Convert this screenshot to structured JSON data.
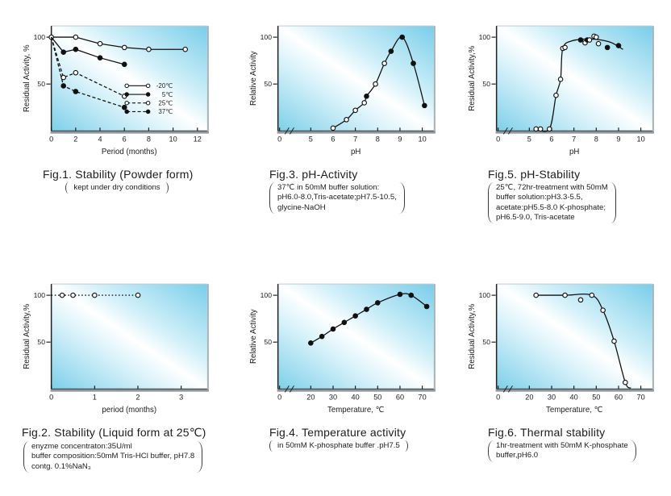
{
  "colors": {
    "panel_gradient": [
      "#7ecfe9",
      "#d8f2fa",
      "#ffffff",
      "#d2f0f9",
      "#79cde9"
    ],
    "line": "#111111",
    "text": "#1c1c1c",
    "axis": "#333333"
  },
  "chart_data": [
    {
      "id": "fig1",
      "type": "line",
      "title": "Fig.1. Stability (Powder form)",
      "caption": [
        "kept under dry conditions"
      ],
      "xlabel": "Period (months)",
      "ylabel": "Residual Activity, %",
      "x": {
        "min": 0,
        "max": 12.8,
        "ticks": [
          0,
          2,
          4,
          6,
          8,
          10,
          12
        ],
        "break": false
      },
      "y": {
        "max": 112,
        "ticks": [
          50,
          100
        ]
      },
      "legend": true,
      "series": [
        {
          "name": "-20℃",
          "marker": "open",
          "line": "solid",
          "smooth": false,
          "points": [
            [
              0,
              100
            ],
            [
              2,
              100
            ],
            [
              4,
              93
            ],
            [
              6,
              89
            ],
            [
              8,
              87
            ],
            [
              11,
              87
            ]
          ]
        },
        {
          "name": "5℃",
          "marker": "filled",
          "line": "solid",
          "smooth": false,
          "points": [
            [
              0,
              100,
              "n"
            ],
            [
              1,
              84
            ],
            [
              2,
              87
            ],
            [
              4,
              78
            ],
            [
              6,
              71
            ]
          ]
        },
        {
          "name": "25℃",
          "marker": "open",
          "line": "dashed",
          "smooth": false,
          "points": [
            [
              0,
              100,
              "n"
            ],
            [
              1,
              57
            ],
            [
              2,
              62
            ],
            [
              6,
              37
            ]
          ]
        },
        {
          "name": "37℃",
          "marker": "filled",
          "line": "dashed",
          "smooth": false,
          "points": [
            [
              0,
              100,
              "n"
            ],
            [
              1,
              48
            ],
            [
              2,
              42
            ],
            [
              6,
              25
            ]
          ]
        }
      ]
    },
    {
      "id": "fig3",
      "type": "line",
      "title": "Fig.3. pH-Activity",
      "caption": [
        "37℃ in 50mM buffer solution:",
        "pH6.0-8.0,Tris-acetate;pH7.5-10.5,",
        "glycine-NaOH"
      ],
      "xlabel": "pH",
      "ylabel": "Relative Activity",
      "x": {
        "min": 5,
        "max": 10,
        "ticks": [
          0,
          5,
          6,
          7,
          8,
          9,
          10
        ],
        "break": true
      },
      "y": {
        "max": 112,
        "ticks": [
          50,
          100
        ]
      },
      "legend": false,
      "series": [
        {
          "name": "",
          "marker": "mixed",
          "line": "solid",
          "smooth": true,
          "points": [
            [
              6.0,
              3,
              "o"
            ],
            [
              6.6,
              12,
              "o"
            ],
            [
              7.0,
              22,
              "o"
            ],
            [
              7.4,
              30,
              "o"
            ],
            [
              7.5,
              37,
              "f"
            ],
            [
              7.9,
              50,
              "o"
            ],
            [
              8.3,
              72,
              "o"
            ],
            [
              8.6,
              85,
              "f"
            ],
            [
              9.1,
              100,
              "f"
            ],
            [
              9.6,
              72,
              "f"
            ],
            [
              10.1,
              27,
              "f"
            ]
          ]
        }
      ]
    },
    {
      "id": "fig5",
      "type": "line",
      "title": "Fig.5. pH-Stability",
      "caption": [
        "25℃, 72hr-treatment with 50mM",
        "buffer solution:pH3.3-5.5,",
        "acetate:pH5.5-8.0 K-phosphate;",
        "pH6.5-9.0, Tris-acetate"
      ],
      "xlabel": "pH",
      "ylabel": "Residual Activity,%",
      "x": {
        "min": 5,
        "max": 10,
        "ticks": [
          0,
          5,
          6,
          7,
          8,
          9,
          10
        ],
        "break": true
      },
      "y": {
        "max": 112,
        "ticks": [
          50,
          100
        ]
      },
      "legend": false,
      "series": [
        {
          "name": "",
          "marker": "none",
          "line": "solid",
          "smooth": true,
          "points": [
            [
              5.3,
              2
            ],
            [
              5.9,
              2
            ],
            [
              6.2,
              38
            ],
            [
              6.4,
              55
            ],
            [
              6.5,
              88
            ],
            [
              6.9,
              96
            ],
            [
              7.6,
              98
            ],
            [
              8.2,
              97
            ],
            [
              8.7,
              94
            ],
            [
              9.2,
              87
            ]
          ]
        },
        {
          "name": "",
          "marker": "mixed",
          "line": "none",
          "smooth": false,
          "points": [
            [
              5.3,
              2,
              "o"
            ],
            [
              5.5,
              2,
              "o"
            ],
            [
              5.9,
              2,
              "o"
            ],
            [
              6.2,
              38,
              "o"
            ],
            [
              6.4,
              55,
              "o"
            ],
            [
              6.5,
              88,
              "o"
            ],
            [
              6.6,
              89,
              "o"
            ],
            [
              7.3,
              97,
              "f"
            ],
            [
              7.5,
              94,
              "o"
            ],
            [
              7.6,
              97,
              "f"
            ],
            [
              7.7,
              97,
              "o"
            ],
            [
              7.9,
              101,
              "o"
            ],
            [
              8.0,
              100,
              "o"
            ],
            [
              8.1,
              93,
              "o"
            ],
            [
              8.5,
              89,
              "f"
            ],
            [
              9.0,
              91,
              "f"
            ]
          ]
        }
      ]
    },
    {
      "id": "fig2",
      "type": "line",
      "title": "Fig.2. Stability (Liquid form at 25℃)",
      "caption": [
        "enyzme concentraton:35U/ml",
        "buffer composition:50mM Tris-HCl buffer, pH7.8",
        "contg. 0.1%NaN₃"
      ],
      "xlabel": "period (months)",
      "ylabel": "Residual Activity,%",
      "x": {
        "min": 0,
        "max": 3.6,
        "ticks": [
          0,
          1,
          2,
          3
        ],
        "break": false
      },
      "y": {
        "max": 112,
        "ticks": [
          50,
          100
        ]
      },
      "legend": false,
      "series": [
        {
          "name": "",
          "marker": "open",
          "line": "dotted",
          "smooth": false,
          "points": [
            [
              0,
              100,
              "n"
            ],
            [
              0.25,
              100
            ],
            [
              0.5,
              100
            ],
            [
              1,
              100
            ],
            [
              2,
              100
            ]
          ]
        }
      ]
    },
    {
      "id": "fig4",
      "type": "line",
      "title": "Fig.4. Temperature activity",
      "caption": [
        "in 50mM K-phosphate buffer .pH7.5"
      ],
      "xlabel": "Temperature, ℃",
      "ylabel": "Relative Activity",
      "x": {
        "min": 20,
        "max": 70,
        "ticks": [
          0,
          20,
          30,
          40,
          50,
          60,
          70
        ],
        "break": true
      },
      "y": {
        "max": 112,
        "ticks": [
          50,
          100
        ]
      },
      "legend": false,
      "series": [
        {
          "name": "",
          "marker": "filled",
          "line": "solid",
          "smooth": true,
          "points": [
            [
              20,
              49
            ],
            [
              25,
              56
            ],
            [
              30,
              64
            ],
            [
              35,
              71
            ],
            [
              40,
              78
            ],
            [
              45,
              85
            ],
            [
              50,
              92
            ],
            [
              60,
              101
            ],
            [
              65,
              100
            ],
            [
              72,
              88
            ]
          ]
        }
      ]
    },
    {
      "id": "fig6",
      "type": "line",
      "title": "Fig.6. Thermal stability",
      "caption": [
        "1hr-treatment with 50mM K-phosphate",
        "buffer,pH6.0"
      ],
      "xlabel": "Temperature, ℃",
      "ylabel": "Residual Activity,%",
      "x": {
        "min": 20,
        "max": 70,
        "ticks": [
          0,
          20,
          30,
          40,
          50,
          60,
          70
        ],
        "break": true
      },
      "y": {
        "max": 112,
        "ticks": [
          50,
          100
        ]
      },
      "legend": false,
      "series": [
        {
          "name": "",
          "marker": "none",
          "line": "solid",
          "smooth": true,
          "points": [
            [
              23,
              100
            ],
            [
              36,
              100
            ],
            [
              48,
              100
            ],
            [
              53,
              84
            ],
            [
              58,
              51
            ],
            [
              63,
              7
            ],
            [
              65.5,
              1
            ]
          ]
        },
        {
          "name": "",
          "marker": "open",
          "line": "none",
          "smooth": false,
          "points": [
            [
              23,
              100
            ],
            [
              36,
              100
            ],
            [
              43,
              95
            ],
            [
              48,
              100
            ],
            [
              53,
              84
            ],
            [
              58,
              51
            ],
            [
              63,
              7
            ]
          ]
        }
      ]
    }
  ]
}
